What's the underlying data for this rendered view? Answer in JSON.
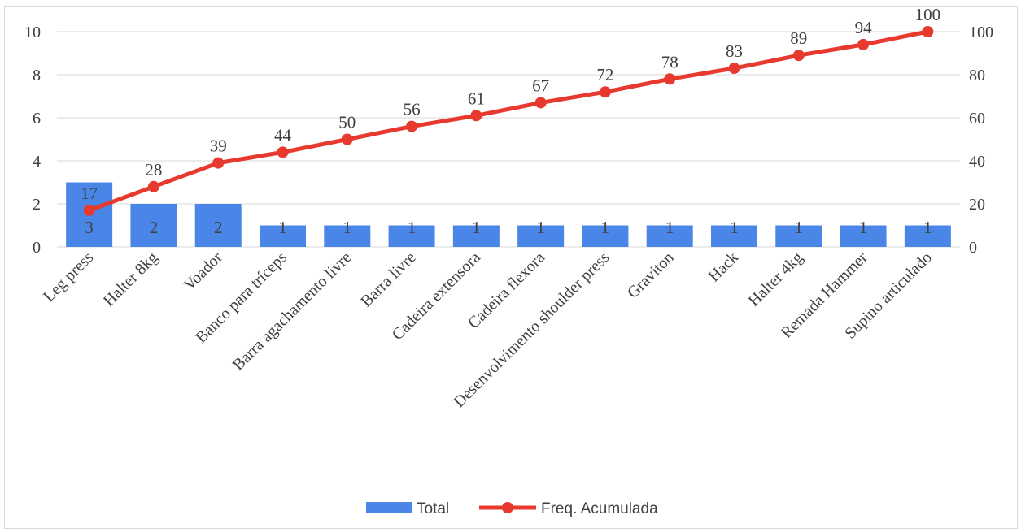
{
  "chart_data": {
    "type": "bar",
    "title": "",
    "categories": [
      "Leg press",
      "Halter 8kg",
      "Voador",
      "Banco para tríceps",
      "Barra agachamento livre",
      "Barra livre",
      "Cadeira extensora",
      "Cadeira flexora",
      "Desenvolvimento shoulder press",
      "Graviton",
      "Hack",
      "Halter 4kg",
      "Remada Hammer",
      "Supino articulado"
    ],
    "series": [
      {
        "name": "Total",
        "type": "bar",
        "axis": "left",
        "color": "#4a86e8",
        "values": [
          3,
          2,
          2,
          1,
          1,
          1,
          1,
          1,
          1,
          1,
          1,
          1,
          1,
          1
        ]
      },
      {
        "name": "Freq. Acumulada",
        "type": "line",
        "axis": "right",
        "color": "#e8392e",
        "values": [
          17,
          28,
          39,
          44,
          50,
          56,
          61,
          67,
          72,
          78,
          83,
          89,
          94,
          100
        ]
      }
    ],
    "y_left": {
      "min": 0,
      "max": 10,
      "ticks": [
        0,
        2,
        4,
        6,
        8,
        10
      ]
    },
    "y_right": {
      "min": 0,
      "max": 100,
      "ticks": [
        0,
        20,
        40,
        60,
        80,
        100
      ]
    },
    "grid": true,
    "legend_position": "bottom"
  }
}
